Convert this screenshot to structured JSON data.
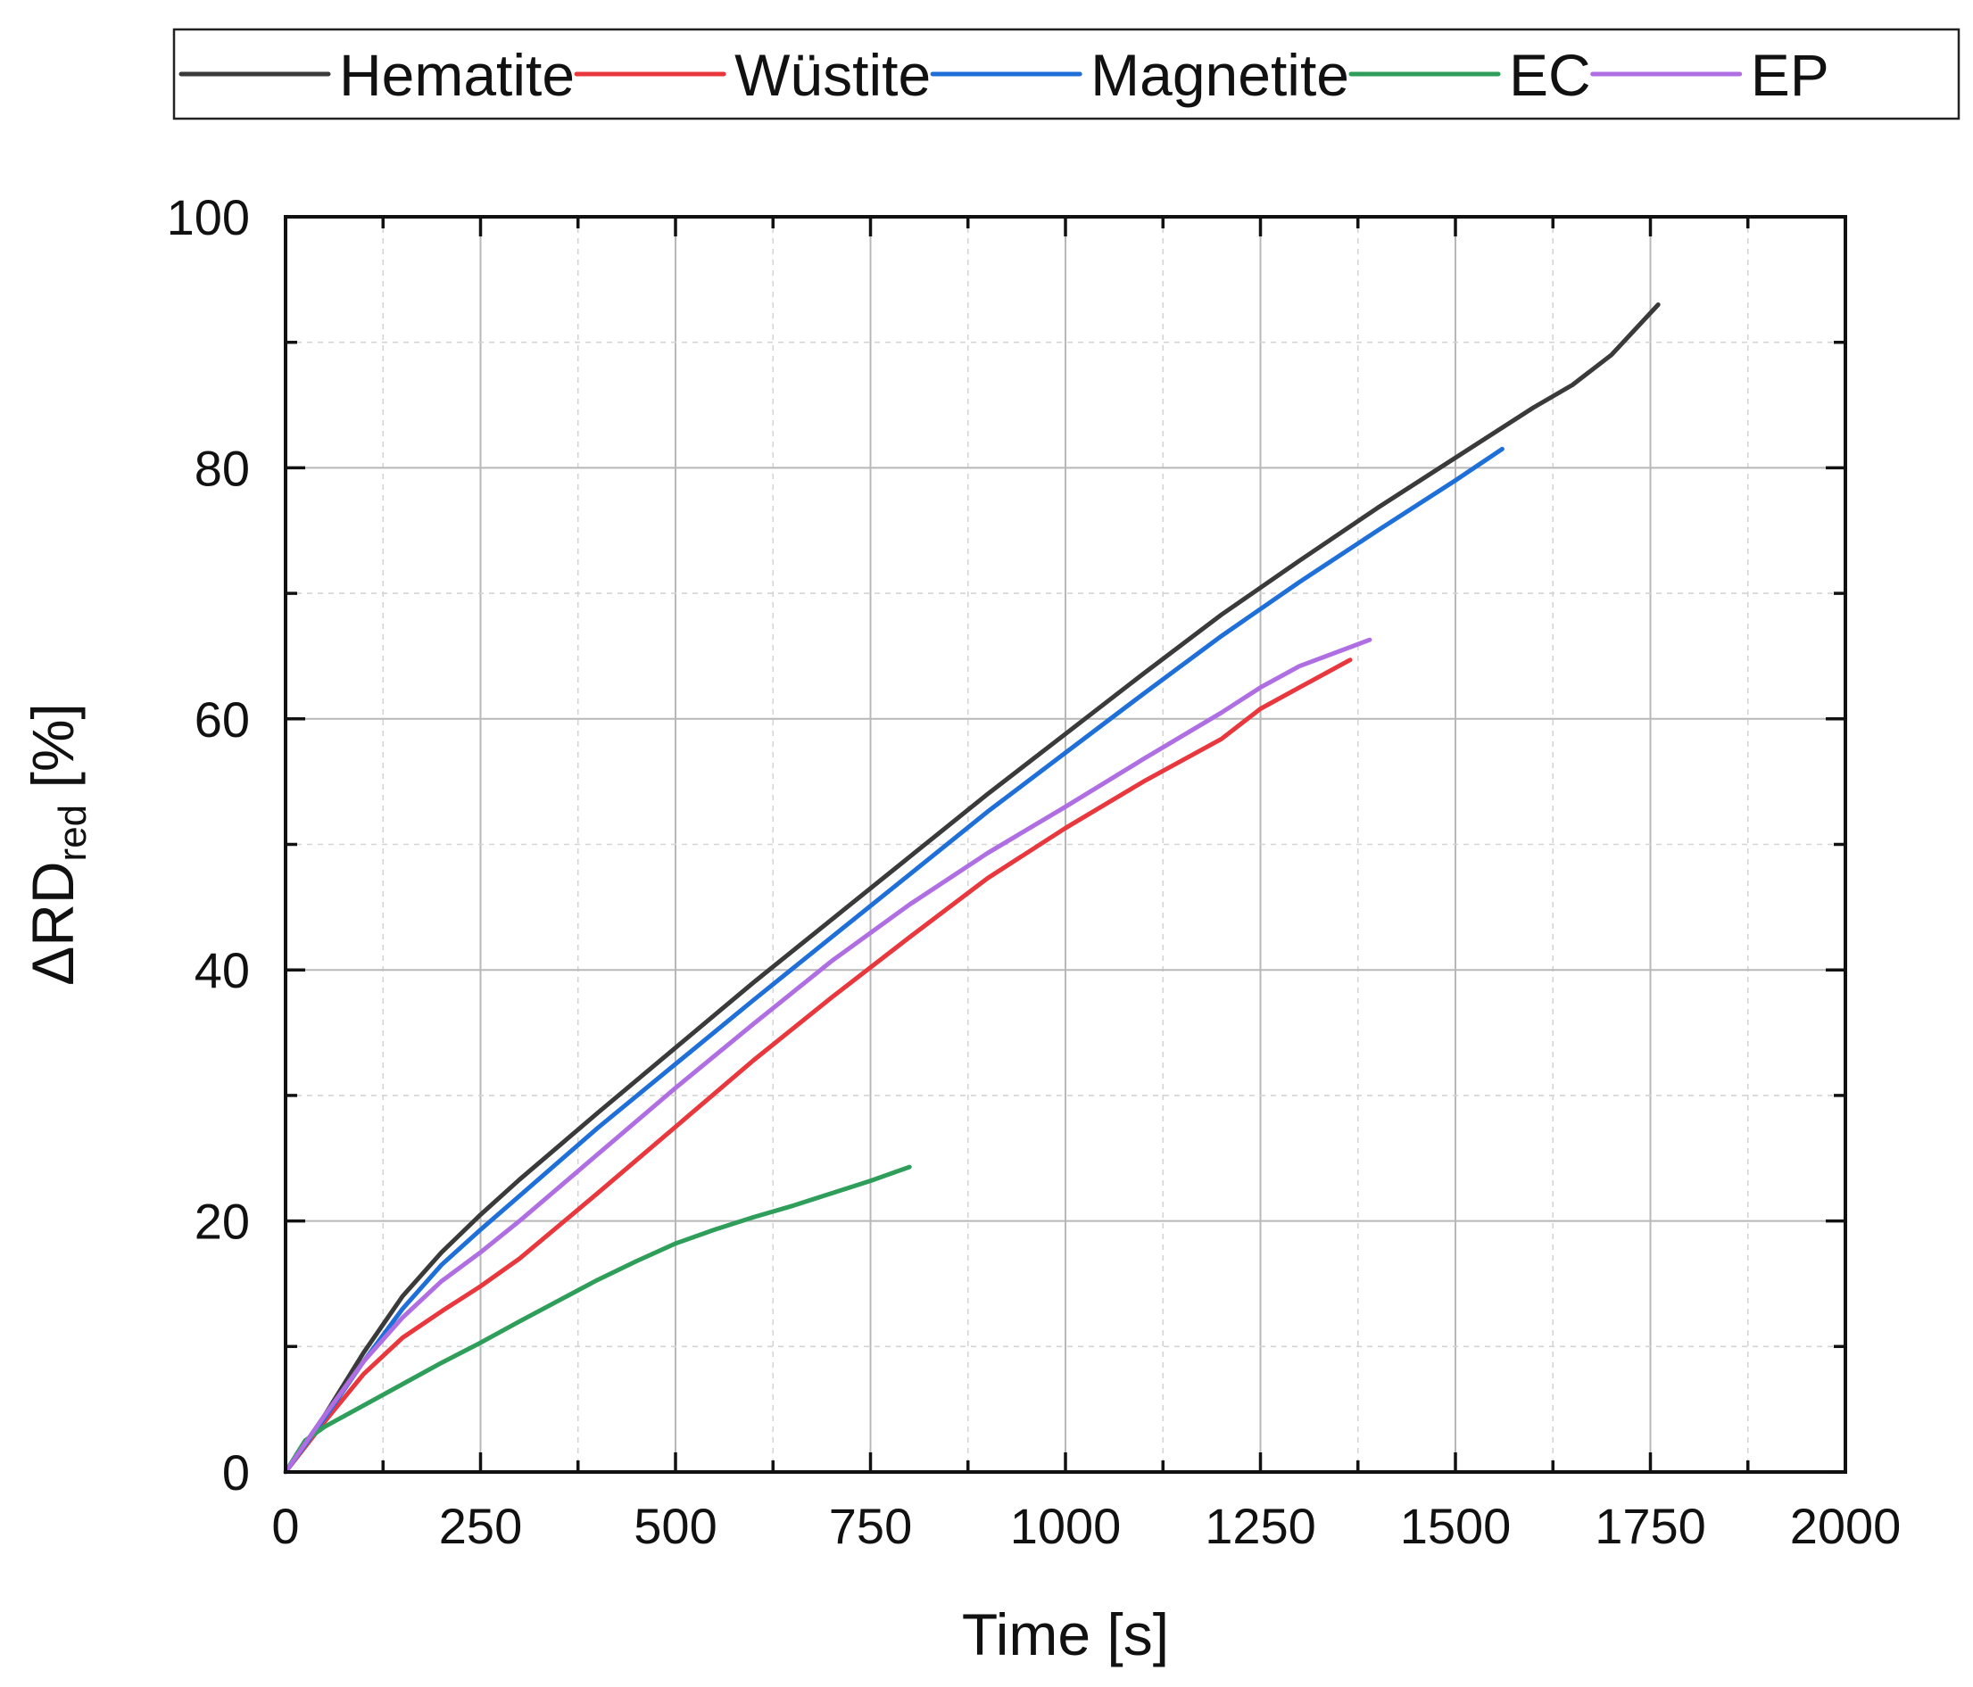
{
  "chart_data": {
    "type": "line",
    "xlabel": "Time [s]",
    "ylabel": {
      "main": "ΔRD",
      "sub": "red",
      "unit": " [%]"
    },
    "xlim": [
      0,
      2000
    ],
    "ylim": [
      0,
      100
    ],
    "xticks": [
      0,
      250,
      500,
      750,
      1000,
      1250,
      1500,
      1750,
      2000
    ],
    "yticks": [
      0,
      20,
      40,
      60,
      80,
      100
    ],
    "grid": true,
    "legend_position": "top",
    "series": [
      {
        "name": "Hematite",
        "color": "#3a3a3a",
        "x": [
          0,
          50,
          100,
          150,
          200,
          250,
          300,
          400,
          500,
          600,
          700,
          800,
          900,
          1000,
          1100,
          1200,
          1300,
          1400,
          1500,
          1600,
          1650,
          1700,
          1760
        ],
        "y": [
          0,
          4.5,
          9.5,
          14,
          17.5,
          20.5,
          23.3,
          28.6,
          33.8,
          39,
          44,
          49,
          54,
          58.8,
          63.6,
          68.3,
          72.6,
          76.8,
          80.8,
          84.8,
          86.6,
          89,
          93
        ]
      },
      {
        "name": "Wüstite",
        "color": "#e8383d",
        "x": [
          0,
          50,
          100,
          150,
          200,
          250,
          300,
          400,
          500,
          600,
          700,
          800,
          900,
          1000,
          1100,
          1200,
          1250,
          1300,
          1365
        ],
        "y": [
          0,
          4,
          7.8,
          10.7,
          12.8,
          14.8,
          17,
          22.2,
          27.5,
          32.8,
          37.8,
          42.6,
          47.3,
          51.3,
          55,
          58.4,
          60.8,
          62.5,
          64.7
        ]
      },
      {
        "name": "Magnetite",
        "color": "#1f6fd9",
        "x": [
          0,
          50,
          100,
          150,
          200,
          250,
          300,
          400,
          500,
          600,
          700,
          800,
          900,
          1000,
          1100,
          1200,
          1300,
          1400,
          1500,
          1560
        ],
        "y": [
          0,
          4.3,
          8.8,
          13,
          16.5,
          19.3,
          22,
          27.4,
          32.5,
          37.6,
          42.6,
          47.6,
          52.6,
          57.3,
          62,
          66.6,
          70.9,
          75,
          79,
          81.5
        ]
      },
      {
        "name": "EC",
        "color": "#2e9e5a",
        "x": [
          0,
          25,
          50,
          100,
          150,
          200,
          250,
          300,
          400,
          450,
          500,
          550,
          600,
          650,
          700,
          750,
          800
        ],
        "y": [
          0,
          2.5,
          3.6,
          5.3,
          7,
          8.7,
          10.3,
          12,
          15.3,
          16.8,
          18.2,
          19.3,
          20.3,
          21.2,
          22.2,
          23.2,
          24.3
        ]
      },
      {
        "name": "EP",
        "color": "#b06ee3",
        "x": [
          0,
          50,
          100,
          150,
          200,
          250,
          300,
          400,
          500,
          600,
          700,
          800,
          900,
          1000,
          1100,
          1200,
          1250,
          1300,
          1390
        ],
        "y": [
          0,
          4.5,
          8.8,
          12.3,
          15.2,
          17.5,
          20,
          25.3,
          30.6,
          35.7,
          40.7,
          45.2,
          49.3,
          53,
          56.8,
          60.5,
          62.5,
          64.2,
          66.3
        ]
      }
    ]
  }
}
